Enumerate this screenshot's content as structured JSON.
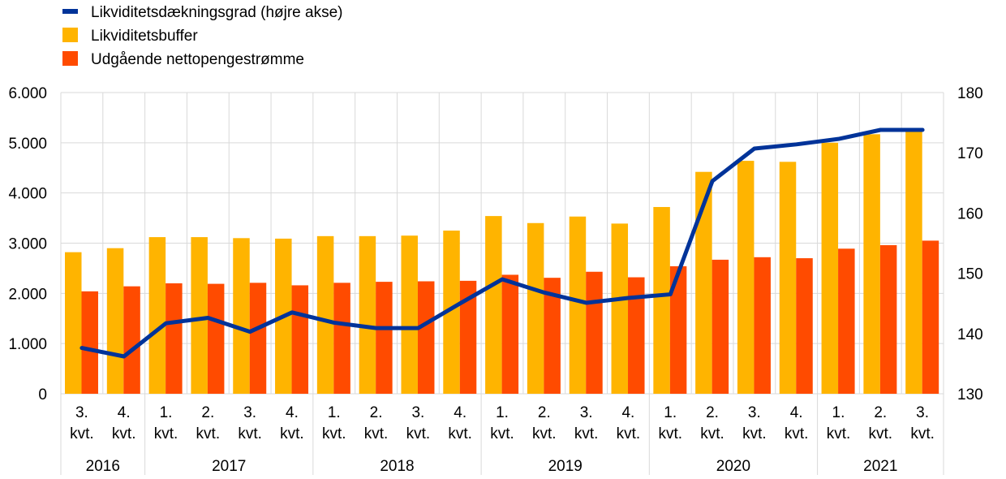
{
  "chart_data": {
    "type": "bar",
    "legend": {
      "position": "top-left",
      "entries": [
        {
          "key": "line",
          "label": "Likviditetsdækningsgrad (højre akse)",
          "color": "#003399",
          "shape": "line"
        },
        {
          "key": "buffer",
          "label": "Likviditetsbuffer",
          "color": "#FFB400",
          "shape": "square"
        },
        {
          "key": "outflow",
          "label": "Udgående nettopengestrømme",
          "color": "#FF4B00",
          "shape": "square"
        }
      ]
    },
    "categories": [
      [
        "3.",
        "kvt."
      ],
      [
        "4.",
        "kvt."
      ],
      [
        "1.",
        "kvt."
      ],
      [
        "2.",
        "kvt."
      ],
      [
        "3.",
        "kvt."
      ],
      [
        "4.",
        "kvt."
      ],
      [
        "1.",
        "kvt."
      ],
      [
        "2.",
        "kvt."
      ],
      [
        "3.",
        "kvt."
      ],
      [
        "4.",
        "kvt."
      ],
      [
        "1.",
        "kvt."
      ],
      [
        "2.",
        "kvt."
      ],
      [
        "3.",
        "kvt."
      ],
      [
        "4.",
        "kvt."
      ],
      [
        "1.",
        "kvt."
      ],
      [
        "2.",
        "kvt."
      ],
      [
        "3.",
        "kvt."
      ],
      [
        "4.",
        "kvt."
      ],
      [
        "1.",
        "kvt."
      ],
      [
        "2.",
        "kvt."
      ],
      [
        "3.",
        "kvt."
      ]
    ],
    "years": [
      {
        "label": "2016",
        "count": 2
      },
      {
        "label": "2017",
        "count": 4
      },
      {
        "label": "2018",
        "count": 4
      },
      {
        "label": "2019",
        "count": 4
      },
      {
        "label": "2020",
        "count": 4
      },
      {
        "label": "2021",
        "count": 3
      }
    ],
    "series": [
      {
        "name": "Likviditetsbuffer",
        "axis": "left",
        "type": "bar",
        "color": "#FFB400",
        "values": [
          2820,
          2900,
          3120,
          3120,
          3100,
          3090,
          3140,
          3140,
          3150,
          3250,
          3540,
          3400,
          3530,
          3390,
          3720,
          4420,
          4640,
          4620,
          5000,
          5170,
          5220
        ]
      },
      {
        "name": "Udgående nettopengestrømme",
        "axis": "left",
        "type": "bar",
        "color": "#FF4B00",
        "values": [
          2040,
          2140,
          2200,
          2190,
          2210,
          2160,
          2210,
          2230,
          2240,
          2250,
          2370,
          2310,
          2430,
          2320,
          2540,
          2670,
          2720,
          2700,
          2890,
          2960,
          3050
        ]
      },
      {
        "name": "Likviditetsdækningsgrad (højre akse)",
        "axis": "right",
        "type": "line",
        "color": "#003399",
        "values": [
          137.6,
          136.2,
          141.7,
          142.6,
          140.3,
          143.5,
          141.8,
          140.9,
          140.9,
          145.0,
          149.0,
          146.8,
          145.1,
          145.9,
          146.5,
          165.3,
          170.7,
          171.4,
          172.3,
          173.8,
          173.8
        ]
      }
    ],
    "y_left": {
      "min": 0,
      "max": 6000,
      "ticks": [
        0,
        1000,
        2000,
        3000,
        4000,
        5000,
        6000
      ],
      "tick_labels": [
        "0",
        "1.000",
        "2.000",
        "3.000",
        "4.000",
        "5.000",
        "6.000"
      ]
    },
    "y_right": {
      "min": 130,
      "max": 180,
      "ticks": [
        130,
        140,
        150,
        160,
        170,
        180
      ],
      "tick_labels": [
        "130",
        "140",
        "150",
        "160",
        "170",
        "180"
      ]
    },
    "grid": true,
    "title": "",
    "xlabel": "",
    "ylabel": ""
  }
}
